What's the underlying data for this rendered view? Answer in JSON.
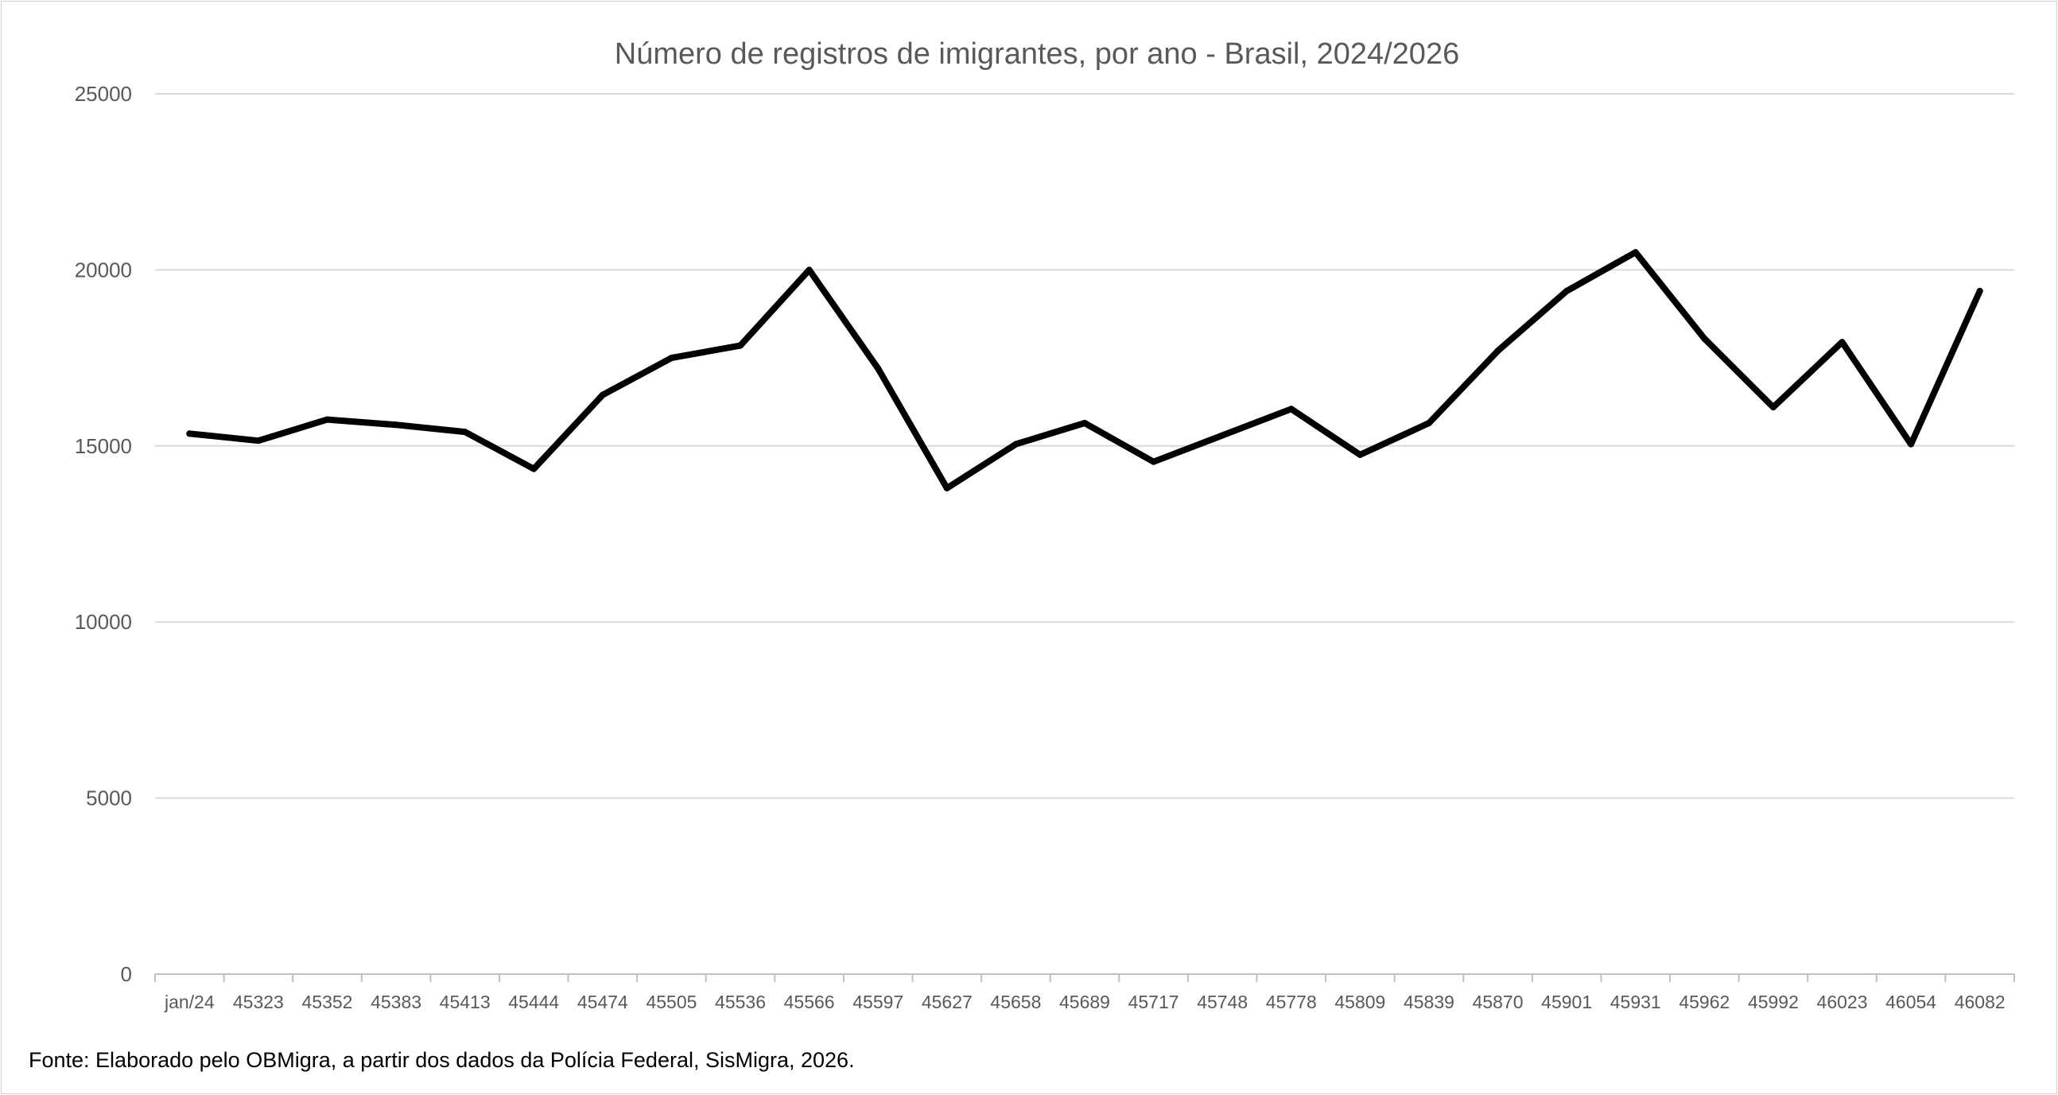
{
  "chart_data": {
    "type": "line",
    "title": "Número de registros de imigrantes, por ano - Brasil, 2024/2026",
    "xlabel": "",
    "ylabel": "",
    "ylim": [
      0,
      25000
    ],
    "yticks": [
      "0",
      "5000",
      "10000",
      "15000",
      "20000",
      "25000"
    ],
    "grid": true,
    "legend": "none",
    "categories": [
      "jan/24",
      "45323",
      "45352",
      "45383",
      "45413",
      "45444",
      "45474",
      "45505",
      "45536",
      "45566",
      "45597",
      "45627",
      "45658",
      "45689",
      "45717",
      "45748",
      "45778",
      "45809",
      "45839",
      "45870",
      "45901",
      "45931",
      "45962",
      "45992",
      "46023",
      "46054",
      "46082"
    ],
    "series": [
      {
        "name": "Registros de imigrantes",
        "color": "#000000",
        "values": [
          15350,
          15150,
          15750,
          15600,
          15400,
          14350,
          16450,
          17500,
          17850,
          20000,
          17200,
          13800,
          15050,
          15650,
          14550,
          15300,
          16050,
          14750,
          15650,
          17700,
          19400,
          20500,
          18050,
          16100,
          17950,
          15050,
          19400
        ]
      }
    ]
  },
  "source_note": "Fonte: Elaborado pelo OBMigra,  a partir dos dados da Polícia Federal, SisMigra, 2026."
}
